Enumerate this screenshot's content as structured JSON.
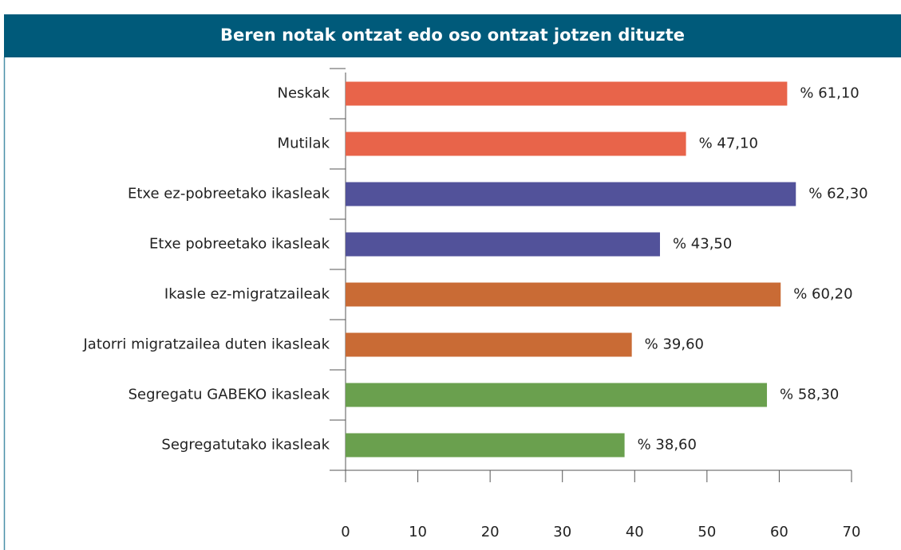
{
  "chart_data": {
    "type": "bar",
    "orientation": "horizontal",
    "title": "Beren notak ontzat edo oso ontzat jotzen dituzte",
    "categories": [
      "Neskak",
      "Mutilak",
      "Etxe ez-pobreetako ikasleak",
      "Etxe pobreetako ikasleak",
      "Ikasle ez-migratzaileak",
      "Jatorri migratzailea duten ikasleak",
      "Segregatu GABEKO ikasleak",
      "Segregatutako ikasleak"
    ],
    "values": [
      61.1,
      47.1,
      62.3,
      43.5,
      60.2,
      39.6,
      58.3,
      38.6
    ],
    "value_labels": [
      "% 61,10",
      "% 47,10",
      "% 62,30",
      "% 43,50",
      "% 60,20",
      "% 39,60",
      "% 58,30",
      "% 38,60"
    ],
    "colors": [
      "#e8644a",
      "#e8644a",
      "#52529a",
      "#52529a",
      "#c96b35",
      "#c96b35",
      "#6aa04e",
      "#6aa04e"
    ],
    "xlim": [
      0,
      70
    ],
    "xticks": [
      0,
      10,
      20,
      30,
      40,
      50,
      60,
      70
    ]
  }
}
